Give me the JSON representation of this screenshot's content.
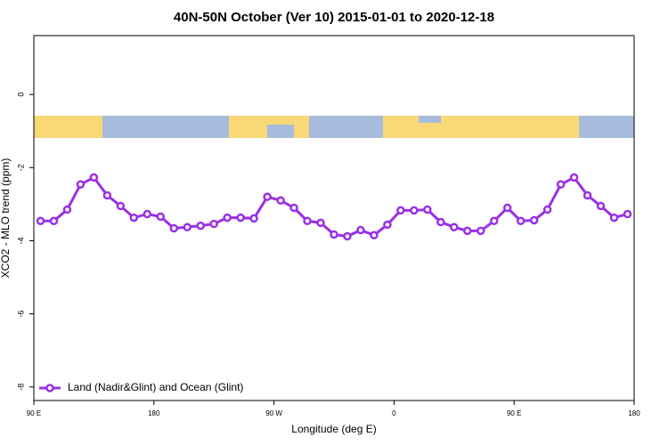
{
  "chart_data": {
    "type": "line",
    "title": "40N-50N October (Ver 10)   2015-01-01 to 2020-12-18",
    "xlabel": "Longitude (deg E)",
    "ylabel": "XCO2 - MLO trend (ppm)",
    "x": [
      95,
      105,
      115,
      125,
      135,
      145,
      155,
      165,
      175,
      185,
      195,
      205,
      215,
      225,
      235,
      245,
      255,
      265,
      275,
      285,
      295,
      305,
      315,
      325,
      335,
      345,
      355,
      365,
      375,
      385,
      395,
      405,
      415,
      425,
      435,
      445,
      455,
      465,
      475,
      485,
      495,
      505,
      515,
      525,
      535
    ],
    "series": [
      {
        "name": "Land (Nadir&Glint) and Ocean (Glint)",
        "color": "#9a30e6",
        "values": [
          -3.46,
          -3.46,
          -3.15,
          -2.46,
          -2.27,
          -2.76,
          -3.05,
          -3.37,
          -3.27,
          -3.34,
          -3.66,
          -3.63,
          -3.59,
          -3.54,
          -3.37,
          -3.37,
          -3.39,
          -2.8,
          -2.9,
          -3.1,
          -3.46,
          -3.51,
          -3.83,
          -3.88,
          -3.71,
          -3.85,
          -3.56,
          -3.17,
          -3.17,
          -3.15,
          -3.49,
          -3.63,
          -3.73,
          -3.73,
          -3.46,
          -3.1,
          -3.46,
          -3.44,
          -3.15,
          -2.46,
          -2.27,
          -2.76,
          -3.05,
          -3.37,
          -3.27
        ]
      }
    ],
    "xlim": [
      90,
      540
    ],
    "xticks": [
      {
        "value": 90,
        "label": "90 E"
      },
      180,
      {
        "value": 270,
        "label": "90 W"
      },
      {
        "value": 360,
        "label": "0"
      },
      {
        "value": 450,
        "label": "90 E"
      },
      {
        "value": 540,
        "label": "180"
      }
    ],
    "ylim": [
      -8.37,
      1.61
    ],
    "yticks": [
      0,
      -2,
      -4,
      -6,
      -8
    ],
    "legend": "bottom-left"
  }
}
